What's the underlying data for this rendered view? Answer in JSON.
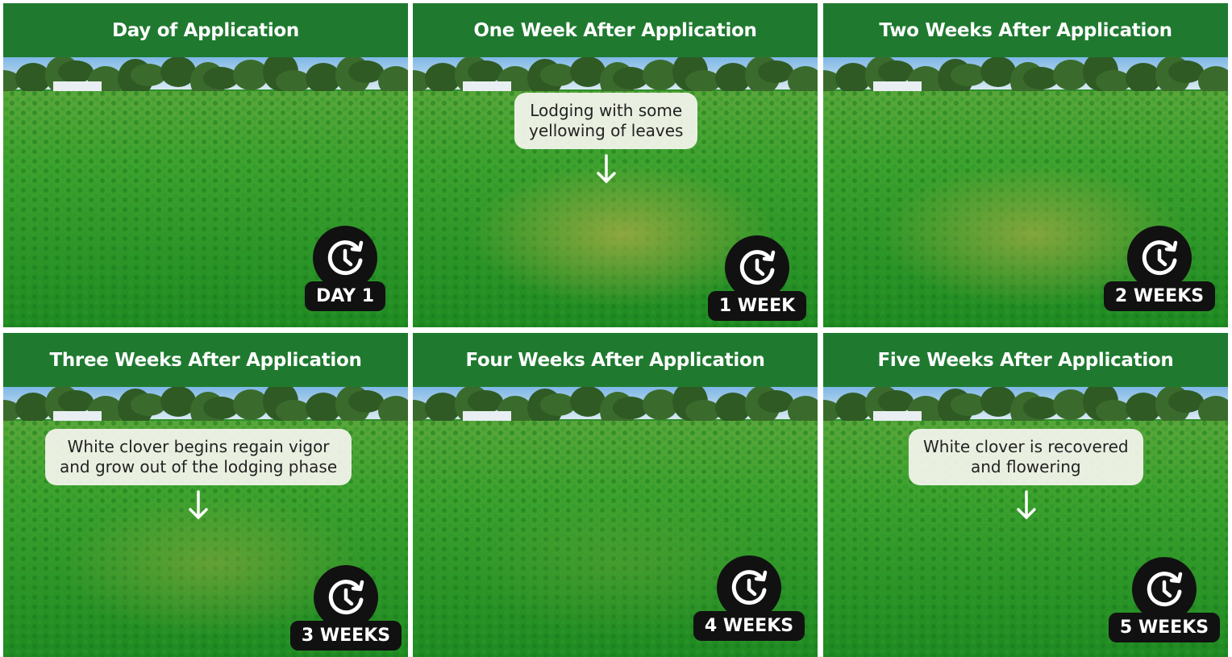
{
  "panels": [
    {
      "title": "Day of Application",
      "badge": "DAY 1"
    },
    {
      "title": "One Week After Application",
      "callout": [
        "Lodging with some",
        "yellowing of leaves"
      ],
      "badge": "1 WEEK"
    },
    {
      "title": "Two Weeks After Application",
      "badge": "2 WEEKS"
    },
    {
      "title": "Three Weeks After Application",
      "callout": [
        "White clover begins regain vigor",
        "and grow out of the lodging phase"
      ],
      "badge": "3 WEEKS"
    },
    {
      "title": "Four Weeks After Application",
      "badge": "4 WEEKS"
    },
    {
      "title": "Five Weeks After Application",
      "callout": [
        "White clover is recovered",
        "and flowering"
      ],
      "badge": "5 WEEKS"
    }
  ]
}
